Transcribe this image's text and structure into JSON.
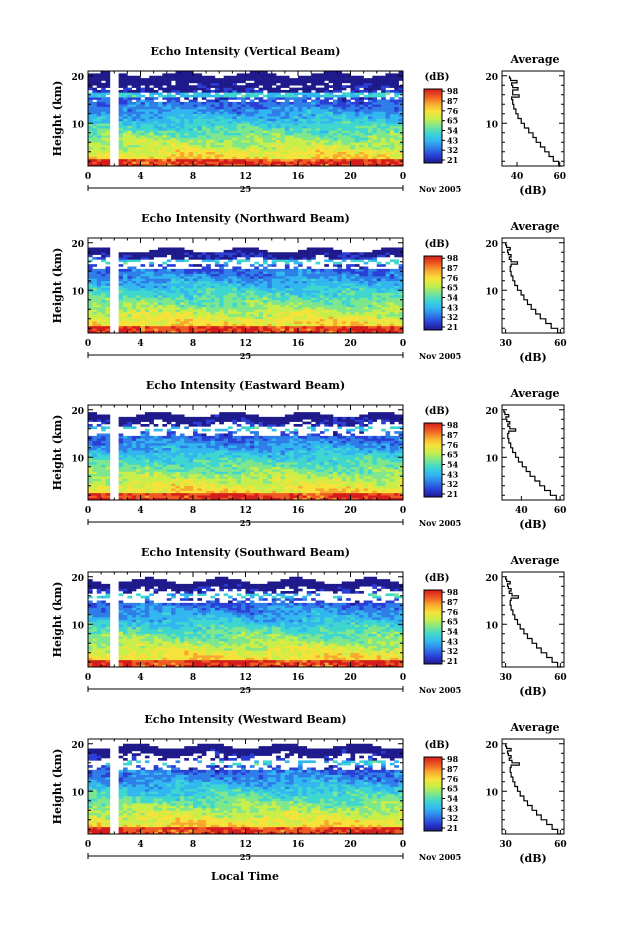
{
  "figure": {
    "x_label": "Local Time",
    "date_month_year": "Nov 2005",
    "date_day": "25",
    "y_label": "Height (km)",
    "colorbar_unit": "(dB)",
    "profile_title": "Average",
    "profile_xlabel": "(dB)"
  },
  "colors": {
    "colormap": [
      "#1e1a8c",
      "#2a3fd6",
      "#2e7de8",
      "#32b6f0",
      "#3fd6d0",
      "#7ee68c",
      "#c8ee4a",
      "#f7e23a",
      "#f8a82e",
      "#ee5a22",
      "#d41c1c"
    ]
  },
  "chart_data": [
    {
      "type": "heatmap",
      "title": "Echo Intensity (Vertical Beam)",
      "xlabel": "Local Time",
      "ylabel": "Height (km)",
      "x_ticks": [
        "0",
        "4",
        "8",
        "12",
        "16",
        "20",
        "0"
      ],
      "y_ticks": [
        "10",
        "20"
      ],
      "xlim": [
        0,
        24
      ],
      "ylim": [
        1,
        21
      ],
      "colorbar": {
        "label": "(dB)",
        "ticks": [
          "21",
          "32",
          "43",
          "54",
          "65",
          "76",
          "87",
          "98"
        ],
        "range": [
          21,
          98
        ]
      },
      "data_gap_hours": [
        1.8,
        2.3
      ],
      "echo_top_km": 20.3,
      "profile": {
        "title": "Average",
        "xlabel": "(dB)",
        "x_ticks": [
          "40",
          "60"
        ],
        "y_ticks": [
          "10",
          "20"
        ],
        "xlim": [
          33,
          62
        ],
        "height_km": [
          1,
          2,
          3,
          4,
          5,
          6,
          7,
          8,
          9,
          10,
          11,
          12,
          13,
          14,
          15,
          15.5,
          16,
          16.5,
          17,
          17.5,
          18,
          18.5,
          19,
          19.5,
          20
        ],
        "dB": [
          61,
          59.5,
          57,
          55,
          53,
          51,
          49,
          47.5,
          45.5,
          43.5,
          42,
          40.5,
          39.5,
          38.5,
          38,
          37.5,
          41,
          38,
          38,
          40.5,
          38,
          37.5,
          40,
          37,
          36.5
        ]
      }
    },
    {
      "type": "heatmap",
      "title": "Echo Intensity (Northward Beam)",
      "xlabel": "Local Time",
      "ylabel": "Height (km)",
      "x_ticks": [
        "0",
        "4",
        "8",
        "12",
        "16",
        "20",
        "0"
      ],
      "y_ticks": [
        "10",
        "20"
      ],
      "xlim": [
        0,
        24
      ],
      "ylim": [
        1,
        21
      ],
      "colorbar": {
        "label": "(dB)",
        "ticks": [
          "21",
          "32",
          "43",
          "54",
          "65",
          "76",
          "87",
          "98"
        ],
        "range": [
          21,
          98
        ]
      },
      "data_gap_hours": [
        1.8,
        2.3
      ],
      "echo_top_km": 18.5,
      "profile": {
        "title": "Average",
        "xlabel": "(dB)",
        "x_ticks": [
          "30",
          "60"
        ],
        "y_ticks": [
          "10",
          "20"
        ],
        "xlim": [
          28,
          62
        ],
        "height_km": [
          1,
          2,
          3,
          4,
          5,
          6,
          7,
          8,
          9,
          10,
          11,
          12,
          13,
          14,
          15,
          15.5,
          16,
          16.5,
          17,
          17.5,
          18,
          18.5,
          19,
          19.5,
          20
        ],
        "dB": [
          61,
          58.5,
          55,
          52,
          49,
          46.5,
          44,
          42,
          40,
          38.5,
          36.5,
          35,
          34,
          33,
          32.5,
          33,
          36.5,
          33,
          32,
          33,
          31.5,
          31,
          32.5,
          30.5,
          30
        ]
      }
    },
    {
      "type": "heatmap",
      "title": "Echo Intensity (Eastward Beam)",
      "xlabel": "Local Time",
      "ylabel": "Height (km)",
      "x_ticks": [
        "0",
        "4",
        "8",
        "12",
        "16",
        "20",
        "0"
      ],
      "y_ticks": [
        "10",
        "20"
      ],
      "xlim": [
        0,
        24
      ],
      "ylim": [
        1,
        21
      ],
      "colorbar": {
        "label": "(dB)",
        "ticks": [
          "21",
          "32",
          "43",
          "54",
          "65",
          "76",
          "87",
          "98"
        ],
        "range": [
          21,
          98
        ]
      },
      "data_gap_hours": [
        1.8,
        2.3
      ],
      "echo_top_km": 19.0,
      "profile": {
        "title": "Average",
        "xlabel": "(dB)",
        "x_ticks": [
          "40",
          "60"
        ],
        "y_ticks": [
          "10",
          "20"
        ],
        "xlim": [
          30,
          62
        ],
        "height_km": [
          1,
          2,
          3,
          4,
          5,
          6,
          7,
          8,
          9,
          10,
          11,
          12,
          13,
          14,
          15,
          15.5,
          16,
          16.5,
          17,
          17.5,
          18,
          18.5,
          19,
          19.5,
          20
        ],
        "dB": [
          60,
          58,
          55,
          52,
          49.5,
          47,
          44.5,
          42.5,
          40.5,
          38.5,
          37,
          35.5,
          34.5,
          33.5,
          33,
          33.5,
          37,
          34,
          33,
          34,
          32.5,
          32,
          33.5,
          31.5,
          31
        ]
      }
    },
    {
      "type": "heatmap",
      "title": "Echo Intensity (Southward Beam)",
      "xlabel": "Local Time",
      "ylabel": "Height (km)",
      "x_ticks": [
        "0",
        "4",
        "8",
        "12",
        "16",
        "20",
        "0"
      ],
      "y_ticks": [
        "10",
        "20"
      ],
      "xlim": [
        0,
        24
      ],
      "ylim": [
        1,
        21
      ],
      "colorbar": {
        "label": "(dB)",
        "ticks": [
          "21",
          "32",
          "43",
          "54",
          "65",
          "76",
          "87",
          "98"
        ],
        "range": [
          21,
          98
        ]
      },
      "data_gap_hours": [
        1.8,
        2.3
      ],
      "echo_top_km": 19.2,
      "profile": {
        "title": "Average",
        "xlabel": "(dB)",
        "x_ticks": [
          "30",
          "60"
        ],
        "y_ticks": [
          "10",
          "20"
        ],
        "xlim": [
          28,
          62
        ],
        "height_km": [
          1,
          2,
          3,
          4,
          5,
          6,
          7,
          8,
          9,
          10,
          11,
          12,
          13,
          14,
          15,
          15.5,
          16,
          16.5,
          17,
          17.5,
          18,
          18.5,
          19,
          19.5,
          20
        ],
        "dB": [
          61,
          58.5,
          55.5,
          52.5,
          49.5,
          47,
          44.5,
          42,
          40,
          38,
          36.5,
          35,
          34,
          33,
          32.5,
          33,
          37,
          33.5,
          32,
          33,
          31.5,
          31,
          32.5,
          30.5,
          30
        ]
      }
    },
    {
      "type": "heatmap",
      "title": "Echo Intensity (Westward Beam)",
      "xlabel": "Local Time",
      "ylabel": "Height (km)",
      "x_ticks": [
        "0",
        "4",
        "8",
        "12",
        "16",
        "20",
        "0"
      ],
      "y_ticks": [
        "10",
        "20"
      ],
      "xlim": [
        0,
        24
      ],
      "ylim": [
        1,
        21
      ],
      "colorbar": {
        "label": "(dB)",
        "ticks": [
          "21",
          "32",
          "43",
          "54",
          "65",
          "76",
          "87",
          "98"
        ],
        "range": [
          21,
          98
        ]
      },
      "data_gap_hours": [
        1.8,
        2.3
      ],
      "echo_top_km": 19.5,
      "profile": {
        "title": "Average",
        "xlabel": "(dB)",
        "x_ticks": [
          "30",
          "60"
        ],
        "y_ticks": [
          "10",
          "20"
        ],
        "xlim": [
          28,
          62
        ],
        "height_km": [
          1,
          2,
          3,
          4,
          5,
          6,
          7,
          8,
          9,
          10,
          11,
          12,
          13,
          14,
          15,
          15.5,
          16,
          16.5,
          17,
          17.5,
          18,
          18.5,
          19,
          19.5,
          20
        ],
        "dB": [
          61,
          58.5,
          55.5,
          52.5,
          49.5,
          47,
          44.5,
          42,
          40,
          38,
          36.5,
          35,
          34,
          33,
          32.5,
          33,
          37.5,
          33.5,
          32,
          33,
          31.5,
          31,
          33,
          30.5,
          30
        ]
      }
    }
  ]
}
